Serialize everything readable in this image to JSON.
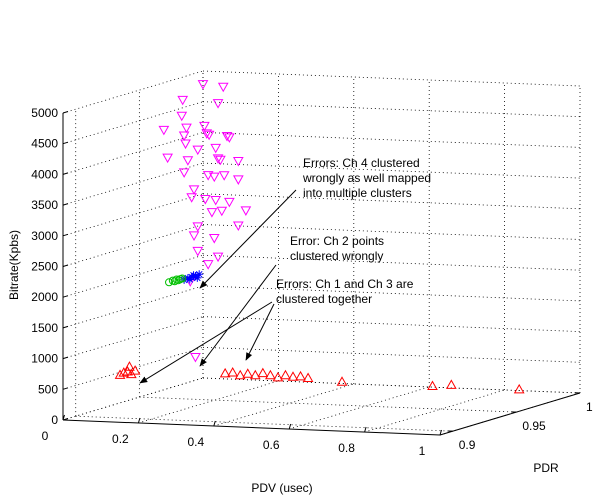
{
  "chart_data": {
    "type": "scatter3d",
    "xlabel": "PDV (usec)",
    "ylabel": "PDR",
    "zlabel": "Bitrate(Kpbs)",
    "xlim": [
      0,
      1
    ],
    "ylim": [
      0.89,
      1
    ],
    "zlim": [
      0,
      5000
    ],
    "xticks": [
      0,
      0.2,
      0.4,
      0.6,
      0.8,
      1
    ],
    "yticks": [
      0.9,
      0.95,
      1
    ],
    "zticks": [
      0,
      500,
      1000,
      1500,
      2000,
      2500,
      3000,
      3500,
      4000,
      4500,
      5000
    ],
    "grid": true,
    "series": [
      {
        "color": "#ff00ff",
        "marker": "triangle-down",
        "x": [
          0.27,
          0.29,
          0.25,
          0.31,
          0.18,
          0.2,
          0.22,
          0.24,
          0.26,
          0.28,
          0.3,
          0.32,
          0.34,
          0.19,
          0.21,
          0.23,
          0.27,
          0.29,
          0.31,
          0.33,
          0.35,
          0.22,
          0.25,
          0.28,
          0.3,
          0.33,
          0.36,
          0.24,
          0.27,
          0.31,
          0.34,
          0.26,
          0.29,
          0.32,
          0.35,
          0.28,
          0.3,
          0.33,
          0.29,
          0.31,
          0.25,
          0.27,
          0.25
        ],
        "y": [
          0.92,
          0.93,
          0.91,
          0.92,
          0.93,
          0.91,
          0.92,
          0.93,
          0.91,
          0.92,
          0.93,
          0.91,
          0.92,
          0.93,
          0.91,
          0.92,
          0.93,
          0.91,
          0.92,
          0.93,
          0.91,
          0.92,
          0.93,
          0.91,
          0.92,
          0.93,
          0.91,
          0.92,
          0.93,
          0.91,
          0.92,
          0.93,
          0.91,
          0.92,
          0.93,
          0.91,
          0.92,
          0.93,
          0.91,
          0.92,
          0.93,
          0.91,
          0.92
        ],
        "z": [
          5350,
          5250,
          5150,
          5050,
          4750,
          4650,
          4500,
          4600,
          4700,
          4550,
          4450,
          4600,
          4500,
          4300,
          4200,
          4100,
          4250,
          4350,
          4150,
          4050,
          4200,
          3900,
          3800,
          3700,
          3850,
          3750,
          3950,
          3500,
          3400,
          3550,
          3450,
          3200,
          3100,
          3300,
          3250,
          2950,
          2850,
          3000,
          2700,
          2550,
          2350,
          2200,
          900
        ]
      },
      {
        "color": "#0000ff",
        "marker": "asterisk",
        "x": [
          0.22,
          0.23,
          0.24,
          0.25,
          0.26,
          0.235,
          0.245,
          0.255
        ],
        "y": [
          0.92,
          0.92,
          0.92,
          0.92,
          0.92,
          0.92,
          0.92,
          0.92
        ],
        "z": [
          2150,
          2180,
          2200,
          2220,
          2250,
          2160,
          2230,
          2190
        ]
      },
      {
        "color": "#00c000",
        "marker": "circle",
        "x": [
          0.18,
          0.19,
          0.195,
          0.2,
          0.205,
          0.21,
          0.215
        ],
        "y": [
          0.92,
          0.92,
          0.92,
          0.92,
          0.92,
          0.92,
          0.92
        ],
        "z": [
          2100,
          2130,
          2120,
          2150,
          2140,
          2160,
          2170
        ]
      },
      {
        "color": "#ff0000",
        "marker": "triangle-up",
        "x": [
          0.05,
          0.06,
          0.07,
          0.08,
          0.09,
          0.075,
          0.16,
          0.18,
          0.2,
          0.22,
          0.24,
          0.26,
          0.28,
          0.3,
          0.32,
          0.34,
          0.36,
          0.38,
          0.47,
          0.71,
          0.76,
          0.94
        ],
        "y": [
          0.92,
          0.92,
          0.92,
          0.92,
          0.92,
          0.92,
          0.97,
          0.97,
          0.97,
          0.97,
          0.97,
          0.97,
          0.97,
          0.97,
          0.97,
          0.97,
          0.97,
          0.97,
          0.97,
          0.97,
          0.97,
          0.97
        ],
        "z": [
          560,
          600,
          620,
          580,
          640,
          700,
          300,
          320,
          280,
          310,
          290,
          330,
          300,
          270,
          310,
          290,
          300,
          280,
          240,
          230,
          260,
          230
        ]
      }
    ],
    "annotations": [
      {
        "lines": [
          "Errors: Ch 4 clustered",
          "wrongly as well mapped",
          "into multiple clusters"
        ]
      },
      {
        "lines": [
          "Error: Ch 2 points",
          "clustered wrongly"
        ]
      },
      {
        "lines": [
          "Errors: Ch 1 and Ch 3 are",
          "clustered together"
        ]
      }
    ]
  }
}
